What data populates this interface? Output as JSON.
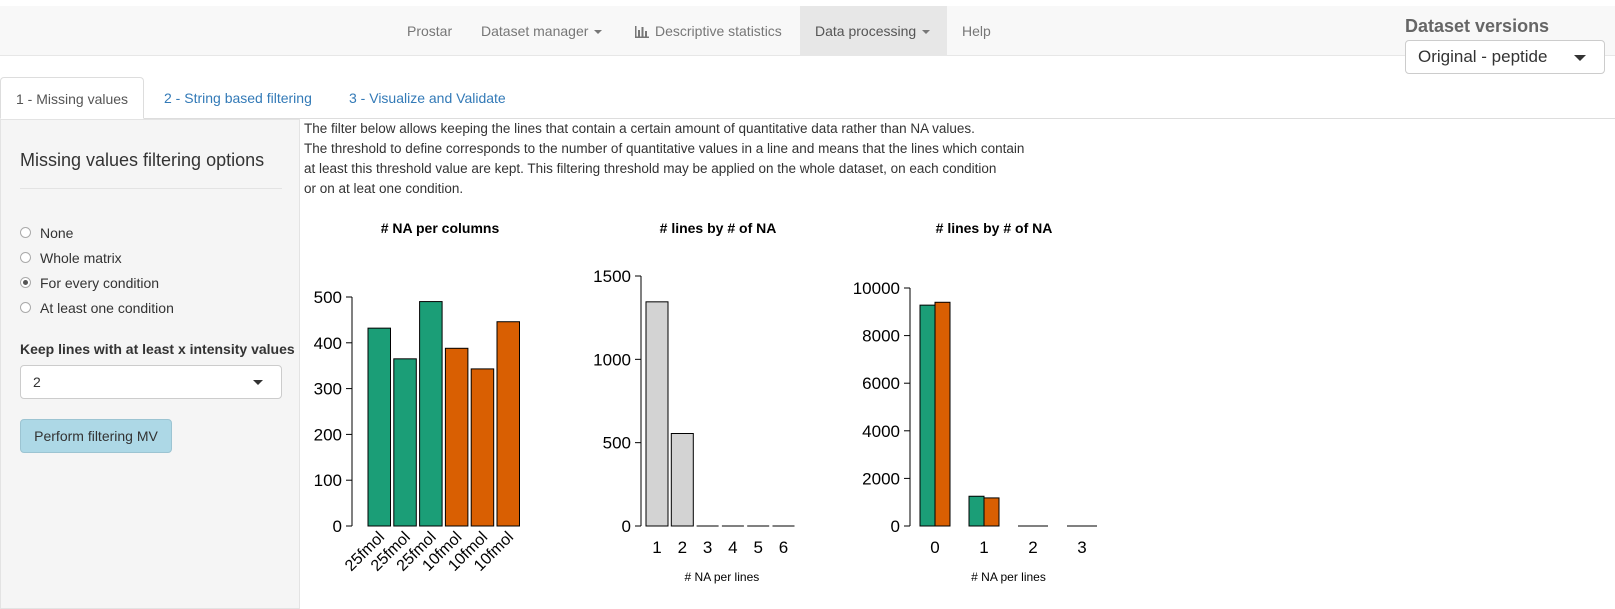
{
  "navbar": {
    "items": [
      {
        "label": "Prostar",
        "dropdown": false
      },
      {
        "label": "Dataset manager",
        "dropdown": true
      },
      {
        "label": "Descriptive statistics",
        "dropdown": false,
        "icon": "bar-chart-icon"
      },
      {
        "label": "Data processing",
        "dropdown": true,
        "active": true
      },
      {
        "label": "Help",
        "dropdown": false
      }
    ]
  },
  "versions": {
    "label": "Dataset versions",
    "selected": "Original - peptide"
  },
  "tabs": [
    {
      "label": "1 - Missing values",
      "active": true
    },
    {
      "label": "2 - String based filtering"
    },
    {
      "label": "3 - Visualize and Validate"
    }
  ],
  "sidebar": {
    "title": "Missing values filtering options",
    "options": [
      {
        "label": "None",
        "checked": false
      },
      {
        "label": "Whole matrix",
        "checked": false
      },
      {
        "label": "For every condition",
        "checked": true
      },
      {
        "label": "At least one condition",
        "checked": false
      }
    ],
    "keep_label": "Keep lines with at least x intensity values",
    "keep_value": "2",
    "button_label": "Perform filtering MV"
  },
  "description": [
    "The filter below allows keeping the lines that contain a certain amount of quantitative data rather than NA values.",
    "The threshold to define corresponds to the number of quantitative values in a line and means that the lines which contain",
    "at least this threshold value are kept. This filtering threshold may be applied on the whole dataset, on each condition",
    "or on at leat one condition."
  ],
  "colors": {
    "green": "#1b9e77",
    "orange": "#d95f02",
    "grey": "#d3d3d3"
  },
  "chart_data": [
    {
      "type": "bar",
      "title": "# NA per columns",
      "categories": [
        "25fmol",
        "25fmol",
        "25fmol",
        "10fmol",
        "10fmol",
        "10fmol"
      ],
      "values": [
        432,
        365,
        490,
        388,
        343,
        446
      ],
      "ylim": [
        0,
        500
      ],
      "yticks": [
        "0",
        "100",
        "200",
        "300",
        "400",
        "500"
      ],
      "xlabel": "",
      "ylabel": ""
    },
    {
      "type": "bar",
      "title": "# lines by # of NA",
      "categories": [
        "1",
        "2",
        "3",
        "4",
        "5",
        "6"
      ],
      "values": [
        1345,
        555,
        0,
        0,
        0,
        0
      ],
      "ylim": [
        0,
        1500
      ],
      "yticks": [
        "0",
        "500",
        "1000",
        "1500"
      ],
      "xlabel": "# NA per lines",
      "ylabel": ""
    },
    {
      "type": "bar",
      "title": "# lines by # of NA",
      "categories": [
        "0",
        "1",
        "2",
        "3"
      ],
      "series": [
        {
          "values": [
            9280,
            1250,
            0,
            0
          ]
        },
        {
          "values": [
            9400,
            1180,
            0,
            0
          ]
        }
      ],
      "ylim": [
        0,
        10000
      ],
      "yticks": [
        "0",
        "2000",
        "4000",
        "6000",
        "8000",
        "10000"
      ],
      "xlabel": "# NA per lines",
      "ylabel": ""
    }
  ]
}
